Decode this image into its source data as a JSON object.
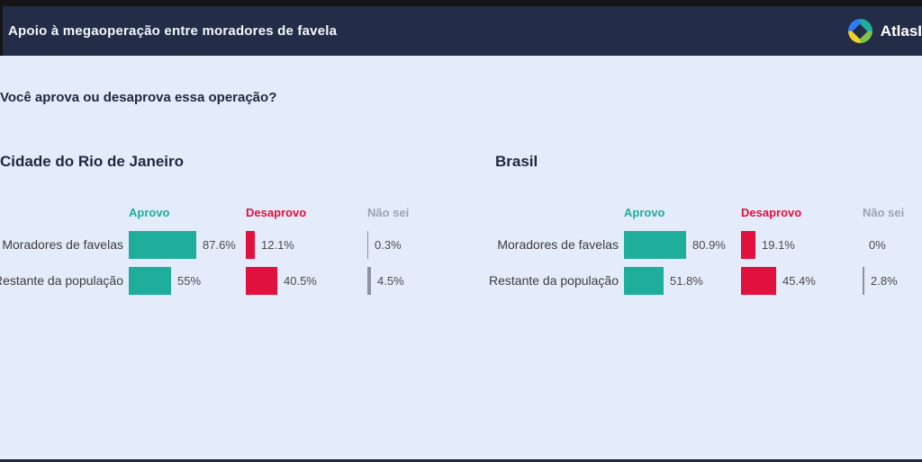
{
  "header": {
    "title": "Apoio à megaoperação entre moradores de favela",
    "logo_text": "AtlasI",
    "bg_color": "#232D47"
  },
  "question": "Você aprova ou desaprova essa operação?",
  "colors": {
    "background": "#E4EBFA",
    "header_navy": "#232D47",
    "approve_teal": "#1FAE9B",
    "disapprove_red": "#E0113E",
    "dontknow_gray": "#9CA3B0",
    "tick_gray": "#8D93A0",
    "text_dark": "#1D2840"
  },
  "chart_data": [
    {
      "type": "bar",
      "title": "Cidade do Rio de Janeiro",
      "categories": [
        "Moradores de favelas",
        "Restante da população"
      ],
      "series": [
        {
          "name": "Aprovo",
          "color": "#1FAE9B",
          "values": [
            87.6,
            55
          ],
          "labels": [
            "87.6%",
            "55%"
          ]
        },
        {
          "name": "Desaprovo",
          "color": "#E0113E",
          "values": [
            12.1,
            40.5
          ],
          "labels": [
            "12.1%",
            "40.5%"
          ]
        },
        {
          "name": "Não sei",
          "color": "#8D93A0",
          "values": [
            0.3,
            4.5
          ],
          "labels": [
            "0.3%",
            "4.5%"
          ]
        }
      ],
      "xlim": [
        0,
        100
      ],
      "unit": "%",
      "legend_position": "top",
      "grid": false
    },
    {
      "type": "bar",
      "title": "Brasil",
      "categories": [
        "Moradores de favelas",
        "Restante da população"
      ],
      "series": [
        {
          "name": "Aprovo",
          "color": "#1FAE9B",
          "values": [
            80.9,
            51.8
          ],
          "labels": [
            "80.9%",
            "51.8%"
          ]
        },
        {
          "name": "Desaprovo",
          "color": "#E0113E",
          "values": [
            19.1,
            45.4
          ],
          "labels": [
            "19.1%",
            "45.4%"
          ]
        },
        {
          "name": "Não sei",
          "color": "#8D93A0",
          "values": [
            0,
            2.8
          ],
          "labels": [
            "0%",
            "2.8%"
          ]
        }
      ],
      "xlim": [
        0,
        100
      ],
      "unit": "%",
      "legend_position": "top",
      "grid": false
    }
  ],
  "series_header_colors": {
    "Aprovo": "#1FAE9B",
    "Desaprovo": "#E0113E",
    "Não sei": "#9CA3B0"
  }
}
